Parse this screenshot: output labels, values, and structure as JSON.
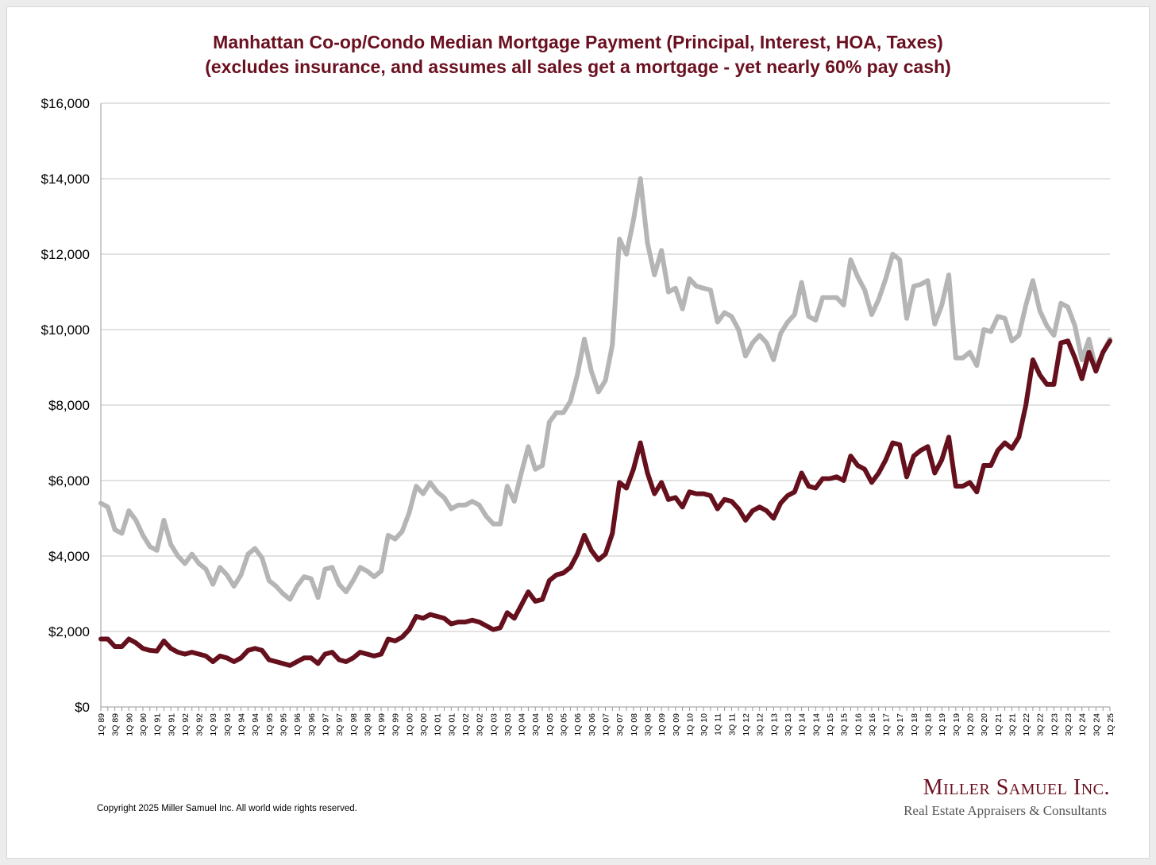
{
  "colors": {
    "title": "#6b1020",
    "brand": "#6b1020",
    "series_upper": "#b5b5b5",
    "series_lower": "#65101c",
    "grid": "#c6c6c6",
    "axis": "#999999"
  },
  "footer": {
    "copyright": "Copyright 2025 Miller Samuel Inc.  All world wide rights reserved.",
    "brand_name": "Miller Samuel Inc.",
    "brand_tagline": "Real Estate Appraisers & Consultants"
  },
  "chart_data": {
    "type": "line",
    "title": "Manhattan Co-op/Condo Median Mortgage Payment (Principal, Interest, HOA, Taxes)",
    "subtitle": "(excludes insurance, and assumes all sales get a mortgage - yet nearly 60% pay cash)",
    "xlabel": "",
    "ylabel": "",
    "ylim": [
      0,
      16000
    ],
    "y_ticks": [
      0,
      2000,
      4000,
      6000,
      8000,
      10000,
      12000,
      14000,
      16000
    ],
    "y_tick_labels": [
      "$0",
      "$2,000",
      "$4,000",
      "$6,000",
      "$8,000",
      "$10,000",
      "$12,000",
      "$14,000",
      "$16,000"
    ],
    "grid": true,
    "legend": "none",
    "x_tick_labels": [
      "1Q 89",
      "3Q 89",
      "1Q 90",
      "3Q 90",
      "1Q 91",
      "3Q 91",
      "1Q 92",
      "3Q 92",
      "1Q 93",
      "3Q 93",
      "1Q 94",
      "3Q 94",
      "1Q 95",
      "3Q 95",
      "1Q 96",
      "3Q 96",
      "1Q 97",
      "3Q 97",
      "1Q 98",
      "3Q 98",
      "1Q 99",
      "3Q 99",
      "1Q 00",
      "3Q 00",
      "1Q 01",
      "3Q 01",
      "1Q 02",
      "3Q 02",
      "1Q 03",
      "3Q 03",
      "1Q 04",
      "3Q 04",
      "1Q 05",
      "3Q 05",
      "1Q 06",
      "3Q 06",
      "1Q 07",
      "3Q 07",
      "1Q 08",
      "3Q 08",
      "1Q 09",
      "3Q 09",
      "1Q 10",
      "3Q 10",
      "1Q 11",
      "3Q 11",
      "1Q 12",
      "3Q 12",
      "1Q 13",
      "3Q 13",
      "1Q 14",
      "3Q 14",
      "1Q 15",
      "3Q 15",
      "1Q 16",
      "3Q 16",
      "1Q 17",
      "3Q 17",
      "1Q 18",
      "3Q 18",
      "1Q 19",
      "3Q 19",
      "1Q 20",
      "3Q 20",
      "1Q 21",
      "3Q 21",
      "1Q 22",
      "3Q 22",
      "1Q 23",
      "3Q 23",
      "1Q 24",
      "3Q 24",
      "1Q 25"
    ],
    "num_quarters": 145,
    "series": [
      {
        "name": "Upper series (gray)",
        "anchors": [
          [
            0,
            5400
          ],
          [
            1,
            5300
          ],
          [
            2,
            4700
          ],
          [
            3,
            4600
          ],
          [
            4,
            5200
          ],
          [
            5,
            4950
          ],
          [
            6,
            4550
          ],
          [
            7,
            4250
          ],
          [
            8,
            4150
          ],
          [
            9,
            4950
          ],
          [
            10,
            4300
          ],
          [
            11,
            4000
          ],
          [
            12,
            3800
          ],
          [
            13,
            4050
          ],
          [
            14,
            3800
          ],
          [
            15,
            3650
          ],
          [
            16,
            3250
          ],
          [
            17,
            3700
          ],
          [
            18,
            3500
          ],
          [
            19,
            3200
          ],
          [
            20,
            3500
          ],
          [
            21,
            4050
          ],
          [
            22,
            4200
          ],
          [
            23,
            3950
          ],
          [
            24,
            3350
          ],
          [
            25,
            3200
          ],
          [
            26,
            3000
          ],
          [
            27,
            2850
          ],
          [
            28,
            3200
          ],
          [
            29,
            3450
          ],
          [
            30,
            3400
          ],
          [
            31,
            2900
          ],
          [
            32,
            3650
          ],
          [
            33,
            3700
          ],
          [
            34,
            3250
          ],
          [
            35,
            3050
          ],
          [
            36,
            3350
          ],
          [
            37,
            3700
          ],
          [
            38,
            3600
          ],
          [
            39,
            3450
          ],
          [
            40,
            3600
          ],
          [
            41,
            4550
          ],
          [
            42,
            4450
          ],
          [
            43,
            4650
          ],
          [
            44,
            5150
          ],
          [
            45,
            5850
          ],
          [
            46,
            5650
          ],
          [
            47,
            5950
          ],
          [
            48,
            5700
          ],
          [
            49,
            5550
          ],
          [
            50,
            5250
          ],
          [
            51,
            5350
          ],
          [
            52,
            5350
          ],
          [
            53,
            5450
          ],
          [
            54,
            5350
          ],
          [
            55,
            5050
          ],
          [
            56,
            4850
          ],
          [
            57,
            4850
          ],
          [
            58,
            5850
          ],
          [
            59,
            5450
          ],
          [
            60,
            6200
          ],
          [
            61,
            6900
          ],
          [
            62,
            6300
          ],
          [
            63,
            6400
          ],
          [
            64,
            7550
          ],
          [
            65,
            7800
          ],
          [
            66,
            7800
          ],
          [
            67,
            8100
          ],
          [
            68,
            8800
          ],
          [
            69,
            9750
          ],
          [
            70,
            8900
          ],
          [
            71,
            8350
          ],
          [
            72,
            8650
          ],
          [
            73,
            9600
          ],
          [
            74,
            12400
          ],
          [
            75,
            12000
          ],
          [
            76,
            12900
          ],
          [
            77,
            14000
          ],
          [
            78,
            12300
          ],
          [
            79,
            11450
          ],
          [
            80,
            12100
          ],
          [
            81,
            11000
          ],
          [
            82,
            11100
          ],
          [
            83,
            10550
          ],
          [
            84,
            11350
          ],
          [
            85,
            11150
          ],
          [
            86,
            11100
          ],
          [
            87,
            11050
          ],
          [
            88,
            10200
          ],
          [
            89,
            10450
          ],
          [
            90,
            10350
          ],
          [
            91,
            10000
          ],
          [
            92,
            9300
          ],
          [
            93,
            9650
          ],
          [
            94,
            9850
          ],
          [
            95,
            9650
          ],
          [
            96,
            9200
          ],
          [
            97,
            9900
          ],
          [
            98,
            10200
          ],
          [
            99,
            10400
          ],
          [
            100,
            11250
          ],
          [
            101,
            10350
          ],
          [
            102,
            10250
          ],
          [
            103,
            10850
          ],
          [
            104,
            10850
          ],
          [
            105,
            10850
          ],
          [
            106,
            10650
          ],
          [
            107,
            11850
          ],
          [
            108,
            11400
          ],
          [
            109,
            11050
          ],
          [
            110,
            10400
          ],
          [
            111,
            10800
          ],
          [
            112,
            11350
          ],
          [
            113,
            12000
          ],
          [
            114,
            11850
          ],
          [
            115,
            10300
          ],
          [
            116,
            11150
          ],
          [
            117,
            11200
          ],
          [
            118,
            11300
          ],
          [
            119,
            10150
          ],
          [
            120,
            10650
          ],
          [
            121,
            11450
          ],
          [
            122,
            9250
          ],
          [
            123,
            9250
          ],
          [
            124,
            9400
          ],
          [
            125,
            9050
          ],
          [
            126,
            10000
          ],
          [
            127,
            9950
          ],
          [
            128,
            10350
          ],
          [
            129,
            10300
          ],
          [
            130,
            9700
          ],
          [
            131,
            9850
          ],
          [
            132,
            10650
          ],
          [
            133,
            11300
          ],
          [
            134,
            10500
          ],
          [
            135,
            10100
          ],
          [
            136,
            9850
          ],
          [
            137,
            10700
          ],
          [
            138,
            10600
          ],
          [
            139,
            10100
          ],
          [
            140,
            9200
          ],
          [
            141,
            9750
          ],
          [
            142,
            8950
          ],
          [
            143,
            9400
          ],
          [
            144,
            9750
          ]
        ]
      },
      {
        "name": "Lower series (dark red)",
        "anchors": [
          [
            0,
            1800
          ],
          [
            1,
            1800
          ],
          [
            2,
            1600
          ],
          [
            3,
            1600
          ],
          [
            4,
            1800
          ],
          [
            5,
            1700
          ],
          [
            6,
            1550
          ],
          [
            7,
            1500
          ],
          [
            8,
            1480
          ],
          [
            9,
            1750
          ],
          [
            10,
            1550
          ],
          [
            11,
            1450
          ],
          [
            12,
            1400
          ],
          [
            13,
            1450
          ],
          [
            14,
            1400
          ],
          [
            15,
            1350
          ],
          [
            16,
            1200
          ],
          [
            17,
            1350
          ],
          [
            18,
            1300
          ],
          [
            19,
            1200
          ],
          [
            20,
            1300
          ],
          [
            21,
            1500
          ],
          [
            22,
            1550
          ],
          [
            23,
            1500
          ],
          [
            24,
            1250
          ],
          [
            25,
            1200
          ],
          [
            26,
            1150
          ],
          [
            27,
            1100
          ],
          [
            28,
            1200
          ],
          [
            29,
            1300
          ],
          [
            30,
            1300
          ],
          [
            31,
            1150
          ],
          [
            32,
            1400
          ],
          [
            33,
            1450
          ],
          [
            34,
            1250
          ],
          [
            35,
            1200
          ],
          [
            36,
            1300
          ],
          [
            37,
            1450
          ],
          [
            38,
            1400
          ],
          [
            39,
            1350
          ],
          [
            40,
            1400
          ],
          [
            41,
            1800
          ],
          [
            42,
            1750
          ],
          [
            43,
            1850
          ],
          [
            44,
            2050
          ],
          [
            45,
            2400
          ],
          [
            46,
            2350
          ],
          [
            47,
            2450
          ],
          [
            48,
            2400
          ],
          [
            49,
            2350
          ],
          [
            50,
            2200
          ],
          [
            51,
            2250
          ],
          [
            52,
            2250
          ],
          [
            53,
            2300
          ],
          [
            54,
            2250
          ],
          [
            55,
            2150
          ],
          [
            56,
            2050
          ],
          [
            57,
            2100
          ],
          [
            58,
            2500
          ],
          [
            59,
            2350
          ],
          [
            60,
            2700
          ],
          [
            61,
            3050
          ],
          [
            62,
            2800
          ],
          [
            63,
            2850
          ],
          [
            64,
            3350
          ],
          [
            65,
            3500
          ],
          [
            66,
            3550
          ],
          [
            67,
            3700
          ],
          [
            68,
            4050
          ],
          [
            69,
            4550
          ],
          [
            70,
            4150
          ],
          [
            71,
            3900
          ],
          [
            72,
            4050
          ],
          [
            73,
            4600
          ],
          [
            74,
            5950
          ],
          [
            75,
            5800
          ],
          [
            76,
            6300
          ],
          [
            77,
            7000
          ],
          [
            78,
            6200
          ],
          [
            79,
            5650
          ],
          [
            80,
            5950
          ],
          [
            81,
            5500
          ],
          [
            82,
            5550
          ],
          [
            83,
            5300
          ],
          [
            84,
            5700
          ],
          [
            85,
            5650
          ],
          [
            86,
            5650
          ],
          [
            87,
            5600
          ],
          [
            88,
            5250
          ],
          [
            89,
            5500
          ],
          [
            90,
            5450
          ],
          [
            91,
            5250
          ],
          [
            92,
            4950
          ],
          [
            93,
            5200
          ],
          [
            94,
            5300
          ],
          [
            95,
            5200
          ],
          [
            96,
            5000
          ],
          [
            97,
            5400
          ],
          [
            98,
            5600
          ],
          [
            99,
            5700
          ],
          [
            100,
            6200
          ],
          [
            101,
            5850
          ],
          [
            102,
            5800
          ],
          [
            103,
            6050
          ],
          [
            104,
            6050
          ],
          [
            105,
            6100
          ],
          [
            106,
            6000
          ],
          [
            107,
            6650
          ],
          [
            108,
            6400
          ],
          [
            109,
            6300
          ],
          [
            110,
            5950
          ],
          [
            111,
            6200
          ],
          [
            112,
            6550
          ],
          [
            113,
            7000
          ],
          [
            114,
            6950
          ],
          [
            115,
            6100
          ],
          [
            116,
            6650
          ],
          [
            117,
            6800
          ],
          [
            118,
            6900
          ],
          [
            119,
            6200
          ],
          [
            120,
            6550
          ],
          [
            121,
            7150
          ],
          [
            122,
            5850
          ],
          [
            123,
            5850
          ],
          [
            124,
            5950
          ],
          [
            125,
            5700
          ],
          [
            126,
            6400
          ],
          [
            127,
            6400
          ],
          [
            128,
            6800
          ],
          [
            129,
            7000
          ],
          [
            130,
            6850
          ],
          [
            131,
            7150
          ],
          [
            132,
            8000
          ],
          [
            133,
            9200
          ],
          [
            134,
            8800
          ],
          [
            135,
            8550
          ],
          [
            136,
            8550
          ],
          [
            137,
            9650
          ],
          [
            138,
            9700
          ],
          [
            139,
            9250
          ],
          [
            140,
            8700
          ],
          [
            141,
            9400
          ],
          [
            142,
            8900
          ],
          [
            143,
            9400
          ],
          [
            144,
            9700
          ]
        ]
      }
    ]
  }
}
